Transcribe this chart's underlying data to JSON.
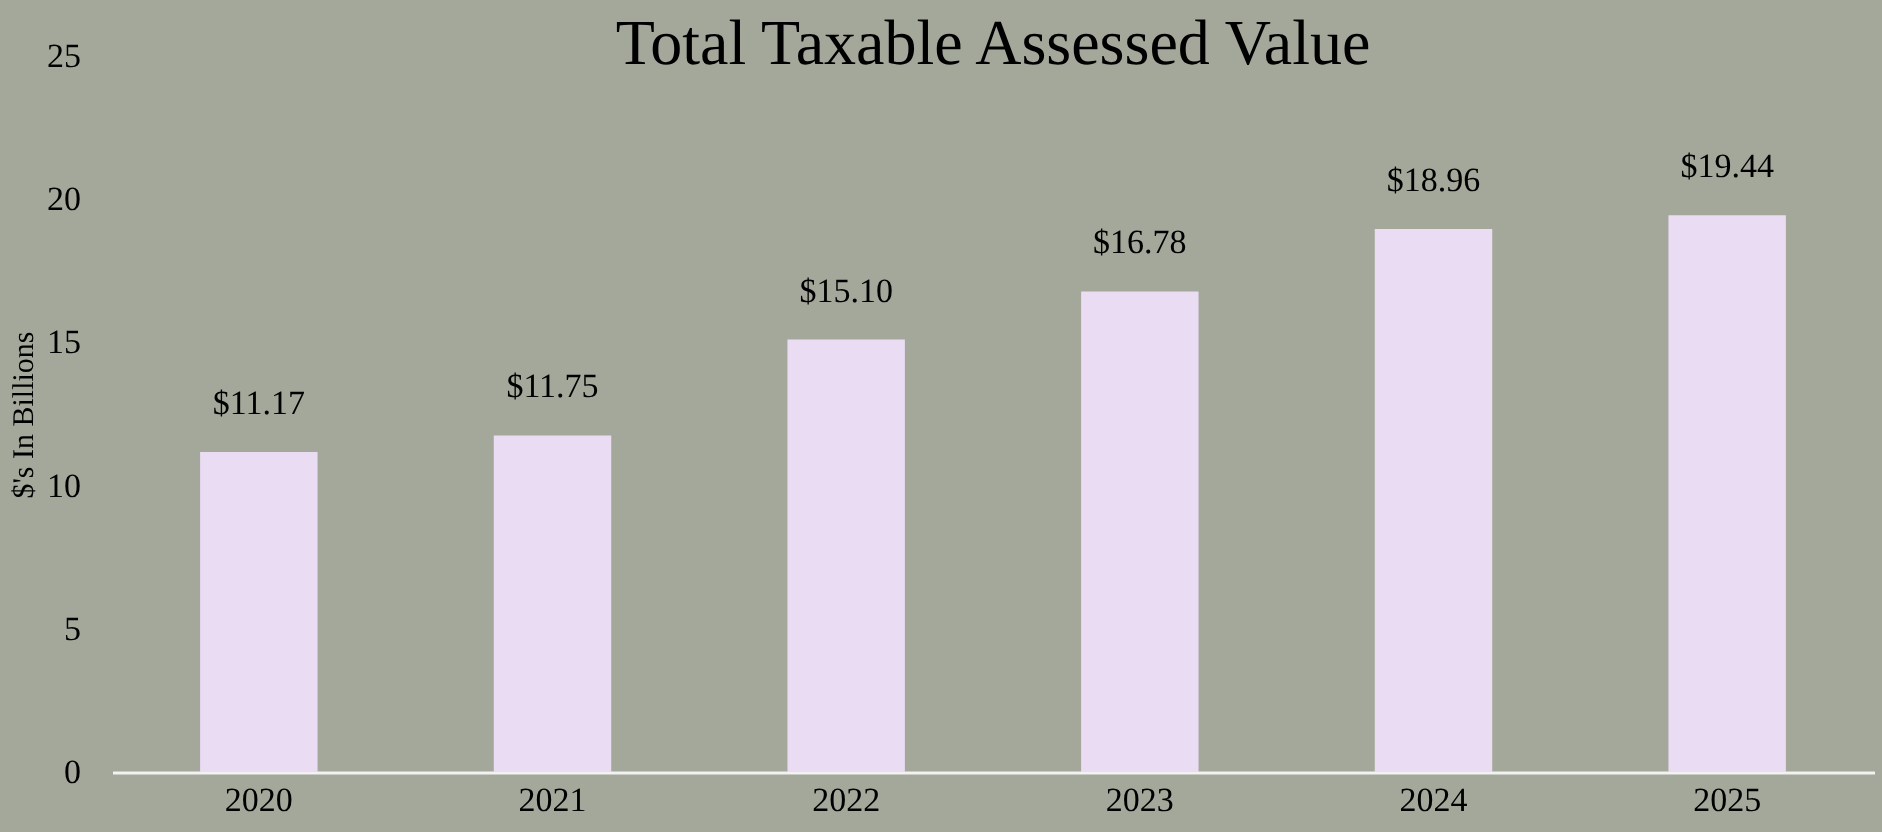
{
  "chart_data": {
    "type": "bar",
    "title": "Total Taxable Assessed Value",
    "ylabel": "$'s In Billions",
    "categories": [
      "2020",
      "2021",
      "2022",
      "2023",
      "2024",
      "2025"
    ],
    "values": [
      11.17,
      11.75,
      15.1,
      16.78,
      18.96,
      19.44
    ],
    "value_labels": [
      "$11.17",
      "$11.75",
      "$15.10",
      "$16.78",
      "$18.96",
      "$19.44"
    ],
    "color": "#e9dcf3",
    "ylim": [
      0,
      25
    ],
    "yticks": [
      0,
      5,
      10,
      15,
      20,
      25
    ],
    "grid": false
  }
}
